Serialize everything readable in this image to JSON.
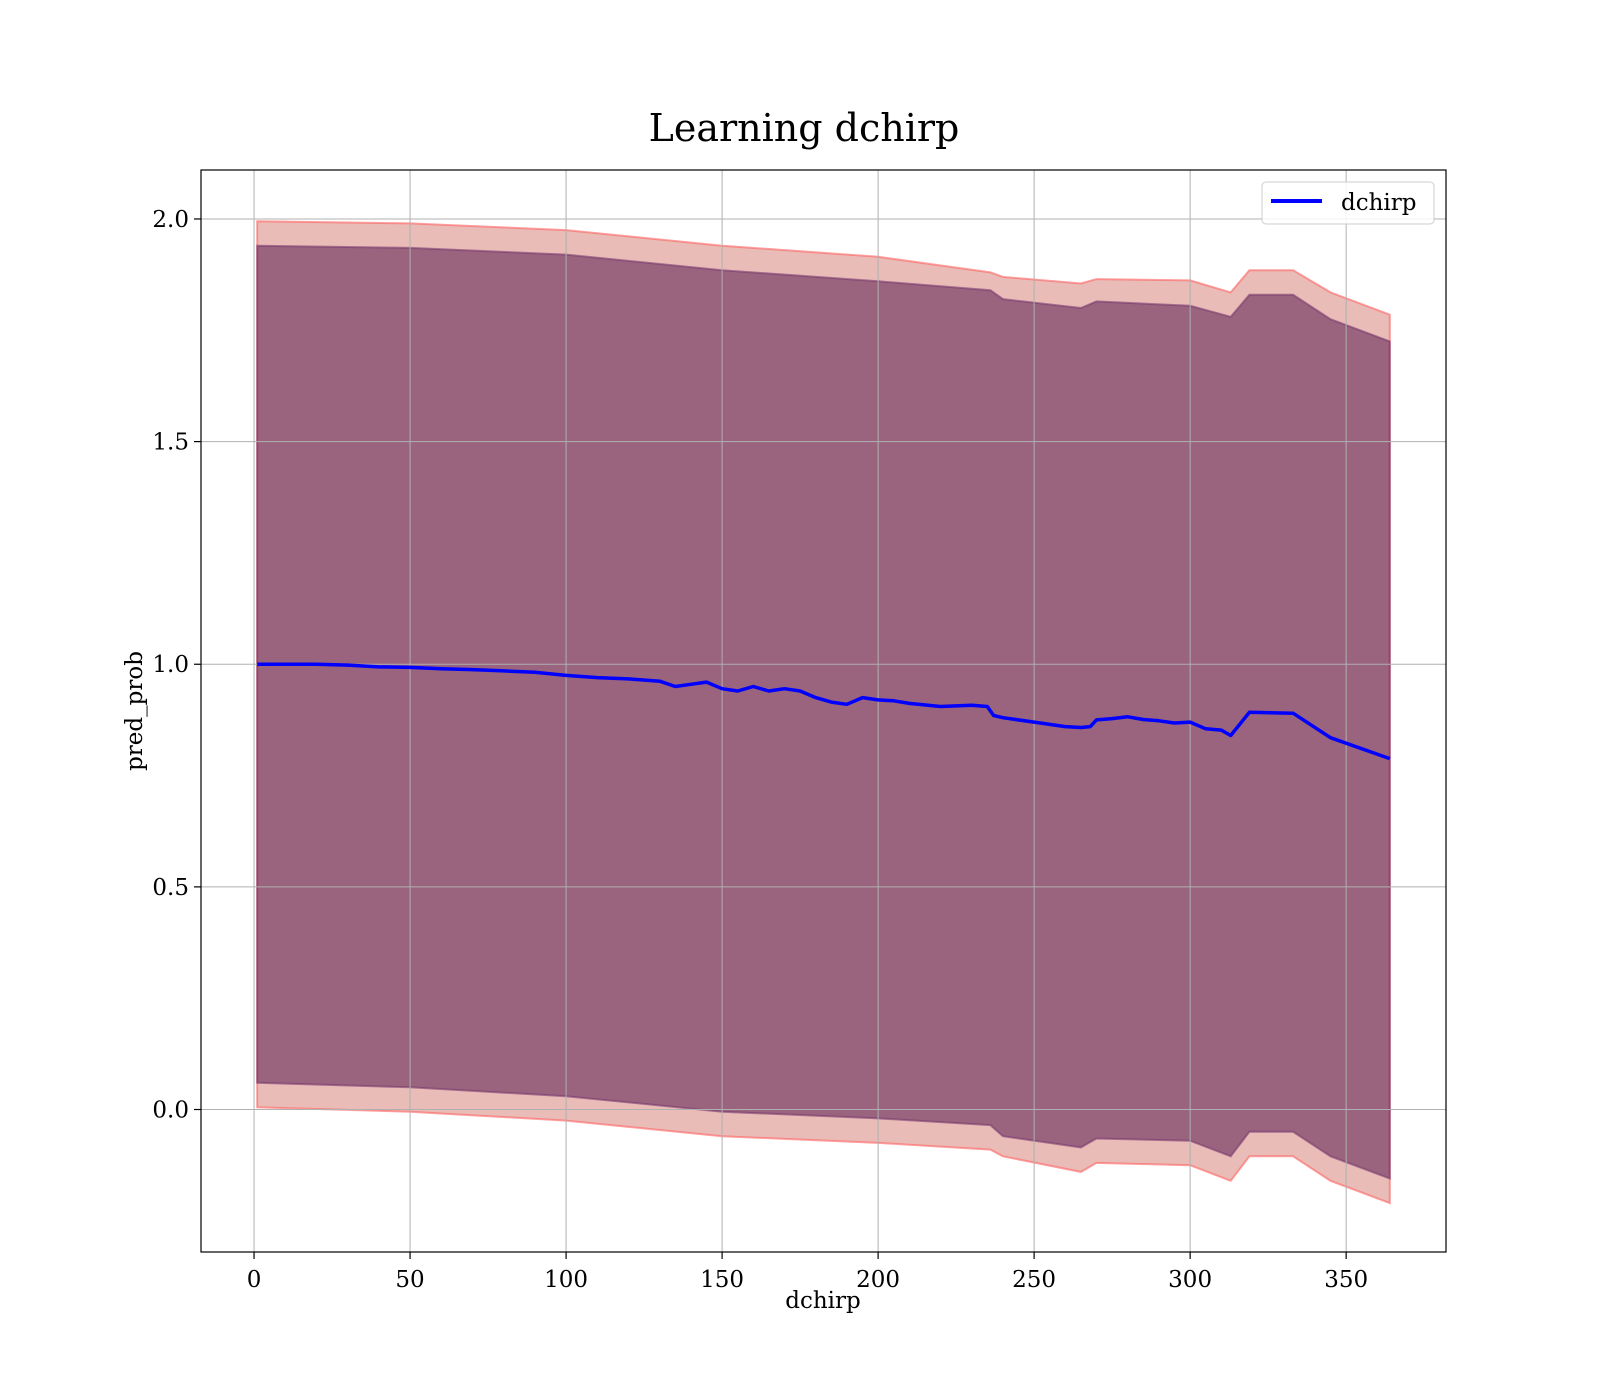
{
  "chart_data": {
    "type": "line",
    "title": "Learning dchirp",
    "xlabel": "dchirp",
    "ylabel": "pred_prob",
    "xlim": [
      -17,
      382
    ],
    "ylim": [
      -0.32,
      2.11
    ],
    "xticks": [
      0,
      50,
      100,
      150,
      200,
      250,
      300,
      350
    ],
    "yticks": [
      0.0,
      0.5,
      1.0,
      1.5,
      2.0
    ],
    "xtick_labels": [
      "0",
      "50",
      "100",
      "150",
      "200",
      "250",
      "300",
      "350"
    ],
    "ytick_labels": [
      "0.0",
      "0.5",
      "1.0",
      "1.5",
      "2.0"
    ],
    "grid": true,
    "legend_position": "top-right",
    "series": [
      {
        "name": "dchirp",
        "color": "#0000ff",
        "x": [
          1,
          10,
          20,
          30,
          40,
          50,
          60,
          70,
          80,
          90,
          100,
          110,
          120,
          130,
          135,
          140,
          145,
          150,
          155,
          160,
          165,
          170,
          175,
          180,
          185,
          190,
          195,
          200,
          205,
          210,
          220,
          230,
          235,
          237,
          240,
          250,
          260,
          265,
          268,
          270,
          275,
          280,
          285,
          290,
          295,
          300,
          305,
          310,
          313,
          319,
          333,
          345,
          364
        ],
        "y": [
          1.0,
          1.0,
          1.0,
          0.998,
          0.994,
          0.993,
          0.99,
          0.988,
          0.985,
          0.982,
          0.975,
          0.97,
          0.967,
          0.962,
          0.95,
          0.955,
          0.96,
          0.945,
          0.94,
          0.95,
          0.94,
          0.945,
          0.94,
          0.925,
          0.915,
          0.91,
          0.925,
          0.92,
          0.918,
          0.912,
          0.905,
          0.908,
          0.905,
          0.885,
          0.88,
          0.87,
          0.86,
          0.858,
          0.86,
          0.875,
          0.878,
          0.882,
          0.876,
          0.873,
          0.868,
          0.87,
          0.855,
          0.852,
          0.84,
          0.892,
          0.89,
          0.835,
          0.788
        ]
      }
    ],
    "bands": [
      {
        "fill": "#c04030",
        "edge": "#ff6060",
        "opacity": 0.35,
        "x": [
          1,
          50,
          100,
          150,
          200,
          236,
          240,
          265,
          270,
          300,
          313,
          319,
          333,
          345,
          364
        ],
        "upper": [
          1.995,
          1.99,
          1.975,
          1.94,
          1.915,
          1.88,
          1.87,
          1.855,
          1.865,
          1.862,
          1.835,
          1.885,
          1.885,
          1.835,
          1.785
        ],
        "lower": [
          0.005,
          -0.005,
          -0.025,
          -0.06,
          -0.075,
          -0.09,
          -0.105,
          -0.14,
          -0.12,
          -0.125,
          -0.16,
          -0.105,
          -0.105,
          -0.16,
          -0.21
        ]
      },
      {
        "fill": "#5a1a50",
        "edge": "#7a3a70",
        "opacity": 0.55,
        "x": [
          1,
          50,
          100,
          150,
          200,
          236,
          240,
          265,
          270,
          300,
          313,
          319,
          333,
          345,
          364
        ],
        "upper": [
          1.94,
          1.935,
          1.92,
          1.885,
          1.86,
          1.84,
          1.82,
          1.8,
          1.815,
          1.805,
          1.78,
          1.83,
          1.83,
          1.775,
          1.725
        ],
        "lower": [
          0.06,
          0.05,
          0.03,
          -0.005,
          -0.02,
          -0.035,
          -0.06,
          -0.085,
          -0.065,
          -0.07,
          -0.105,
          -0.05,
          -0.05,
          -0.105,
          -0.155
        ]
      }
    ]
  }
}
